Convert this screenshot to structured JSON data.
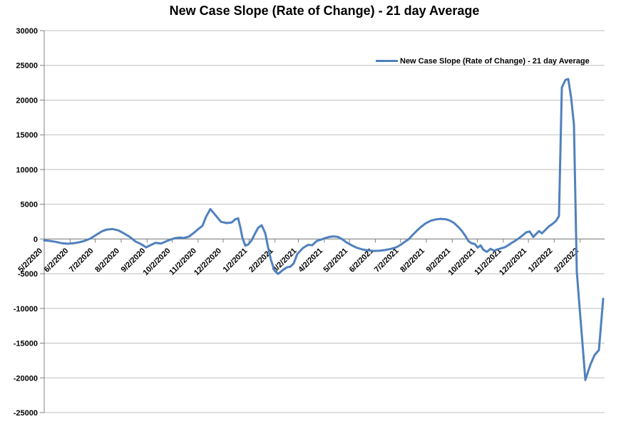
{
  "chart_data": {
    "type": "line",
    "title": "New Case Slope (Rate of Change) - 21 day Average",
    "xlabel": "",
    "ylabel": "",
    "ylim": [
      -25000,
      30000
    ],
    "grid": "horizontal",
    "legend_position": "inside-top-right",
    "y_ticks": [
      30000,
      25000,
      20000,
      15000,
      10000,
      5000,
      0,
      -5000,
      -10000,
      -15000,
      -20000,
      -25000
    ],
    "x_ticks": [
      [
        "5/2/2020",
        0.0
      ],
      [
        "6/2/2020",
        0.0463
      ],
      [
        "7/2/2020",
        0.091
      ],
      [
        "8/2/2020",
        0.1373
      ],
      [
        "9/2/2020",
        0.1836
      ],
      [
        "10/2/2020",
        0.2283
      ],
      [
        "11/2/2020",
        0.2746
      ],
      [
        "12/2/2020",
        0.3193
      ],
      [
        "1/2/2021",
        0.3655
      ],
      [
        "2/2/2021",
        0.4118
      ],
      [
        "3/2/2021",
        0.4536
      ],
      [
        "4/2/2021",
        0.4999
      ],
      [
        "5/2/2021",
        0.5447
      ],
      [
        "6/2/2021",
        0.5908
      ],
      [
        "7/2/2021",
        0.6356
      ],
      [
        "8/2/2021",
        0.6819
      ],
      [
        "9/2/2021",
        0.7281
      ],
      [
        "10/2/2021",
        0.7729
      ],
      [
        "11/2/2021",
        0.8192
      ],
      [
        "12/2/2021",
        0.864
      ],
      [
        "1/2/2022",
        0.9102
      ],
      [
        "2/2/2022",
        0.9565
      ]
    ],
    "colors": {
      "line": "#4F81BD",
      "grid": "#BFBFBF",
      "axis": "#808080",
      "text": "#000000"
    },
    "series": [
      {
        "name": "New Case Slope (Rate of Change) - 21 day Average",
        "color": "#4F81BD",
        "points": [
          [
            0.0,
            -200
          ],
          [
            0.0102,
            -280
          ],
          [
            0.0204,
            -400
          ],
          [
            0.0305,
            -600
          ],
          [
            0.042,
            -680
          ],
          [
            0.0522,
            -620
          ],
          [
            0.0623,
            -480
          ],
          [
            0.0725,
            -260
          ],
          [
            0.0827,
            80
          ],
          [
            0.0929,
            600
          ],
          [
            0.1031,
            1100
          ],
          [
            0.112,
            1360
          ],
          [
            0.1221,
            1430
          ],
          [
            0.1323,
            1240
          ],
          [
            0.1425,
            800
          ],
          [
            0.1527,
            300
          ],
          [
            0.1628,
            -350
          ],
          [
            0.173,
            -750
          ],
          [
            0.1819,
            -1200
          ],
          [
            0.1896,
            -900
          ],
          [
            0.1985,
            -550
          ],
          [
            0.2087,
            -650
          ],
          [
            0.2188,
            -300
          ],
          [
            0.2265,
            -60
          ],
          [
            0.2341,
            130
          ],
          [
            0.2417,
            200
          ],
          [
            0.2494,
            140
          ],
          [
            0.2583,
            350
          ],
          [
            0.2672,
            900
          ],
          [
            0.2761,
            1500
          ],
          [
            0.2824,
            1900
          ],
          [
            0.2888,
            3200
          ],
          [
            0.2964,
            4320
          ],
          [
            0.3028,
            3700
          ],
          [
            0.3092,
            3080
          ],
          [
            0.3155,
            2470
          ],
          [
            0.3257,
            2290
          ],
          [
            0.3346,
            2390
          ],
          [
            0.341,
            2840
          ],
          [
            0.3461,
            2970
          ],
          [
            0.3499,
            1710
          ],
          [
            0.3537,
            170
          ],
          [
            0.3588,
            -960
          ],
          [
            0.3639,
            -800
          ],
          [
            0.3702,
            -180
          ],
          [
            0.3766,
            850
          ],
          [
            0.3817,
            1610
          ],
          [
            0.388,
            1980
          ],
          [
            0.3944,
            850
          ],
          [
            0.3995,
            -1200
          ],
          [
            0.4046,
            -3010
          ],
          [
            0.4109,
            -4550
          ],
          [
            0.4173,
            -5030
          ],
          [
            0.4262,
            -4450
          ],
          [
            0.4338,
            -4060
          ],
          [
            0.4389,
            -4010
          ],
          [
            0.4453,
            -3500
          ],
          [
            0.4517,
            -2160
          ],
          [
            0.4618,
            -1300
          ],
          [
            0.4707,
            -850
          ],
          [
            0.4784,
            -900
          ],
          [
            0.486,
            -300
          ],
          [
            0.4936,
            -100
          ],
          [
            0.5013,
            120
          ],
          [
            0.5089,
            300
          ],
          [
            0.5165,
            380
          ],
          [
            0.5242,
            290
          ],
          [
            0.5318,
            -30
          ],
          [
            0.5394,
            -500
          ],
          [
            0.5483,
            -900
          ],
          [
            0.5573,
            -1250
          ],
          [
            0.5674,
            -1500
          ],
          [
            0.5776,
            -1650
          ],
          [
            0.5878,
            -1720
          ],
          [
            0.598,
            -1700
          ],
          [
            0.6081,
            -1590
          ],
          [
            0.6183,
            -1430
          ],
          [
            0.6285,
            -1180
          ],
          [
            0.6361,
            -840
          ],
          [
            0.6438,
            -380
          ],
          [
            0.6501,
            -60
          ],
          [
            0.6565,
            500
          ],
          [
            0.6641,
            1120
          ],
          [
            0.6718,
            1700
          ],
          [
            0.6807,
            2250
          ],
          [
            0.6896,
            2620
          ],
          [
            0.6985,
            2820
          ],
          [
            0.7074,
            2900
          ],
          [
            0.7163,
            2850
          ],
          [
            0.7239,
            2640
          ],
          [
            0.7316,
            2290
          ],
          [
            0.7392,
            1700
          ],
          [
            0.7455,
            1140
          ],
          [
            0.7519,
            400
          ],
          [
            0.757,
            -300
          ],
          [
            0.7621,
            -600
          ],
          [
            0.7684,
            -730
          ],
          [
            0.7735,
            -1230
          ],
          [
            0.7786,
            -920
          ],
          [
            0.7837,
            -1560
          ],
          [
            0.7901,
            -1850
          ],
          [
            0.7964,
            -1420
          ],
          [
            0.8028,
            -1690
          ],
          [
            0.8092,
            -1490
          ],
          [
            0.8155,
            -1340
          ],
          [
            0.8219,
            -1180
          ],
          [
            0.8282,
            -890
          ],
          [
            0.8346,
            -540
          ],
          [
            0.841,
            -240
          ],
          [
            0.8473,
            120
          ],
          [
            0.8537,
            520
          ],
          [
            0.8601,
            960
          ],
          [
            0.8664,
            1070
          ],
          [
            0.8728,
            280
          ],
          [
            0.8779,
            720
          ],
          [
            0.883,
            1140
          ],
          [
            0.8881,
            820
          ],
          [
            0.8944,
            1310
          ],
          [
            0.9008,
            1820
          ],
          [
            0.9071,
            2180
          ],
          [
            0.9135,
            2620
          ],
          [
            0.9186,
            3300
          ],
          [
            0.9237,
            21800
          ],
          [
            0.93,
            22900
          ],
          [
            0.9351,
            23030
          ],
          [
            0.9402,
            20400
          ],
          [
            0.9453,
            16450
          ],
          [
            0.9504,
            -4700
          ],
          [
            0.9555,
            -10000
          ],
          [
            0.9606,
            -15100
          ],
          [
            0.9656,
            -20300
          ],
          [
            0.9746,
            -18100
          ],
          [
            0.9822,
            -16700
          ],
          [
            0.9898,
            -16000
          ],
          [
            0.9975,
            -8600
          ]
        ]
      }
    ]
  }
}
